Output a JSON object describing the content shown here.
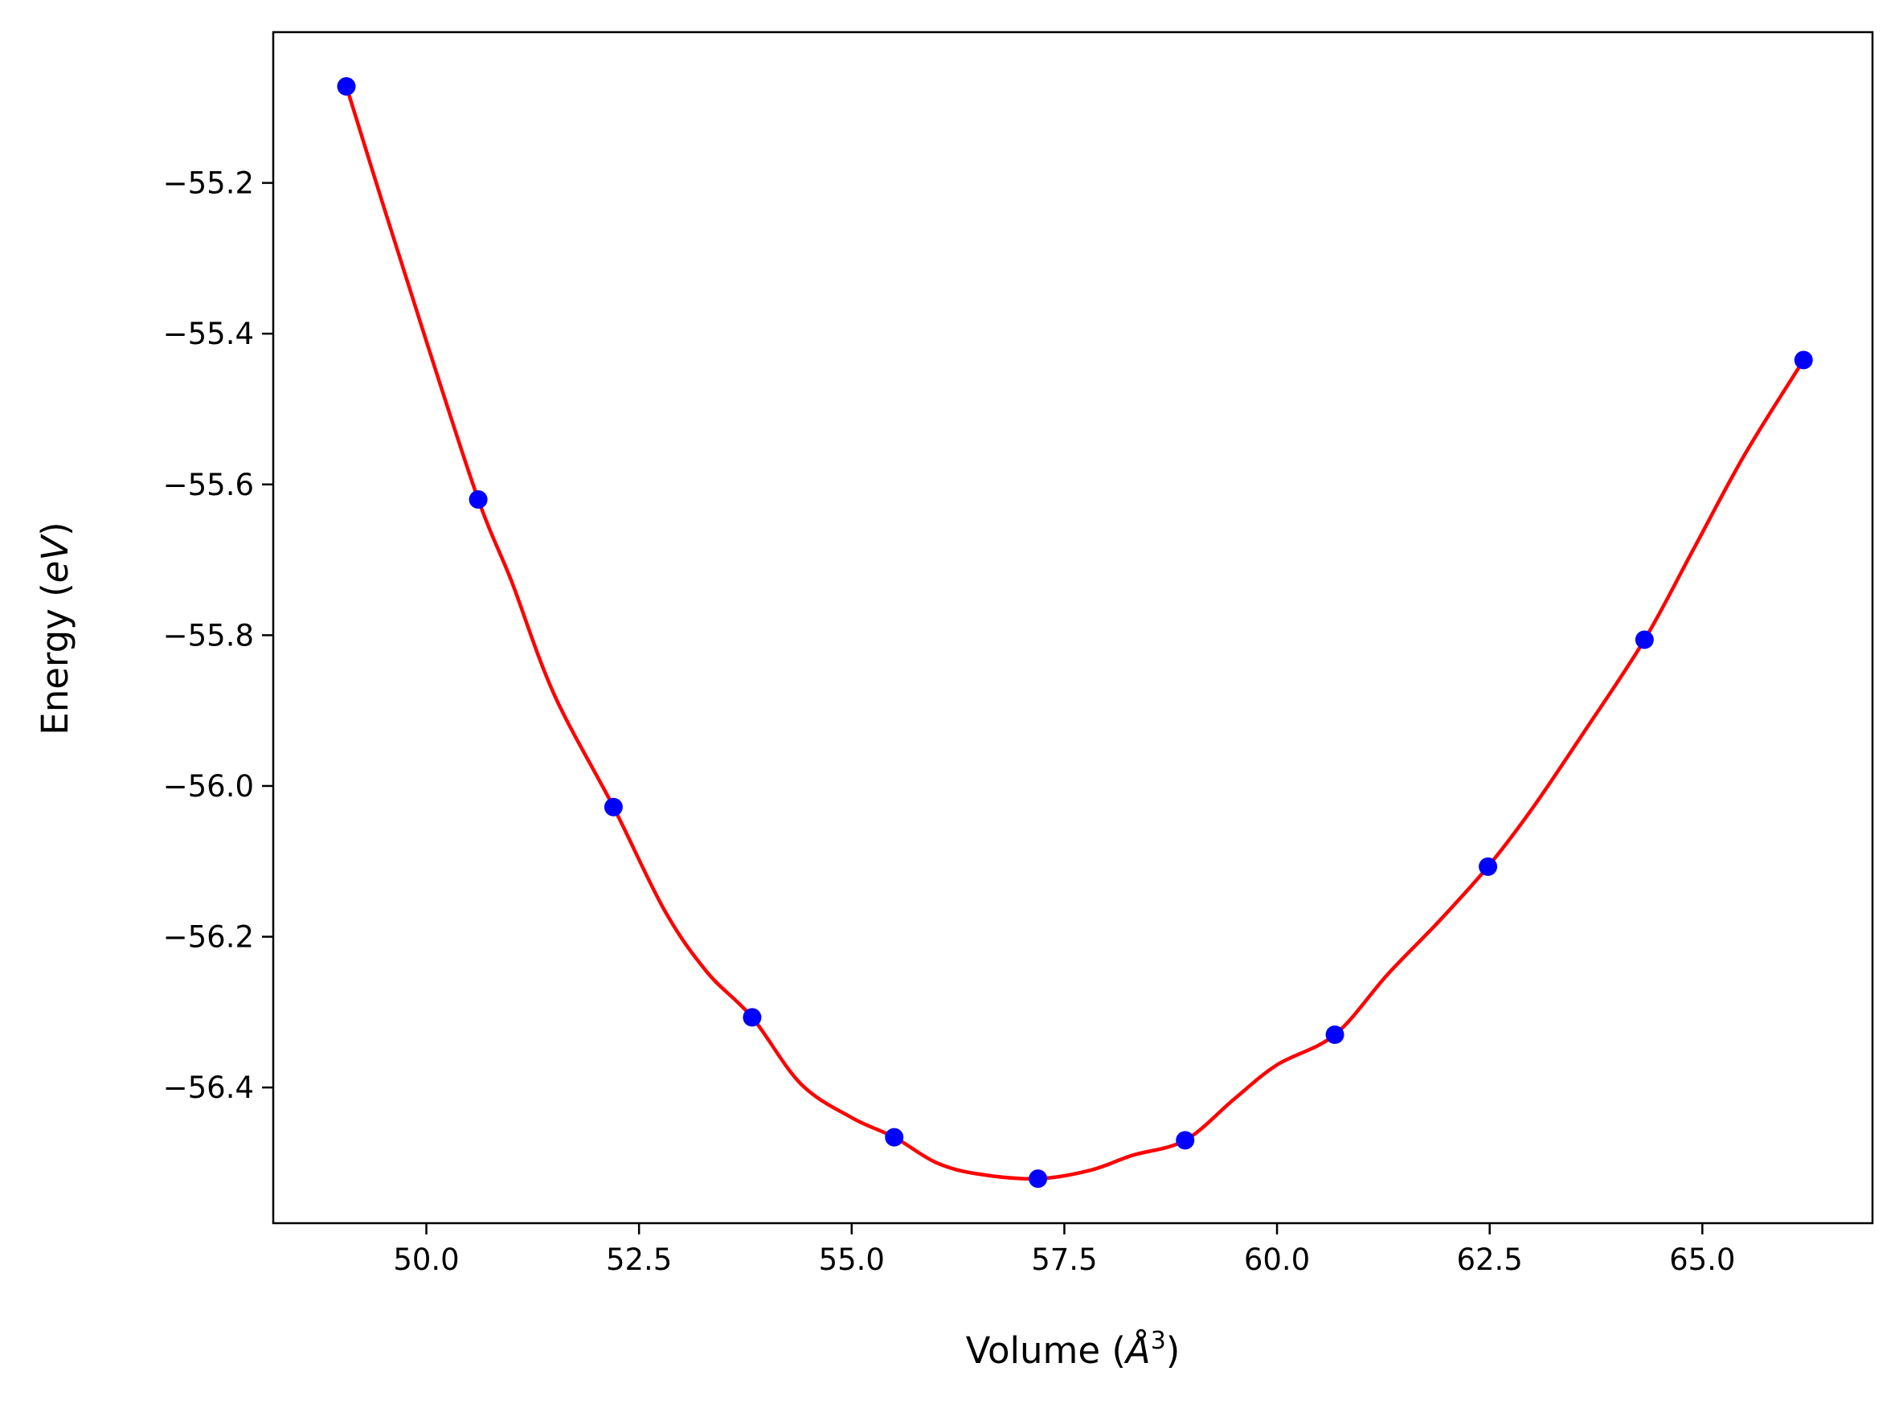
{
  "chart_data": {
    "type": "scatter",
    "xlabel": "Volume (Å³)",
    "xlabel_parts": {
      "prefix": "Volume (",
      "symbol": "Å",
      "exponent": "3",
      "suffix": ")"
    },
    "ylabel": "Energy (eV)",
    "ylabel_parts": {
      "prefix": "Energy (",
      "symbol": "eV",
      "suffix": ")"
    },
    "xlim": [
      48.2,
      67.0
    ],
    "ylim": [
      -56.58,
      -55.0
    ],
    "xticks": [
      50.0,
      52.5,
      55.0,
      57.5,
      60.0,
      62.5,
      65.0
    ],
    "xtick_labels": [
      "50.0",
      "52.5",
      "55.0",
      "57.5",
      "60.0",
      "62.5",
      "65.0"
    ],
    "yticks": [
      -55.2,
      -55.4,
      -55.6,
      -55.8,
      -56.0,
      -56.2,
      -56.4
    ],
    "ytick_labels": [
      "−55.2",
      "−55.4",
      "−55.6",
      "−55.8",
      "−56.0",
      "−56.2",
      "−56.4"
    ],
    "grid": false,
    "series": [
      {
        "kind": "points",
        "color": "#0000ff",
        "x": [
          49.06,
          50.61,
          52.2,
          53.83,
          55.5,
          57.19,
          58.92,
          60.68,
          62.48,
          64.32,
          66.19
        ],
        "y": [
          -55.072,
          -55.62,
          -56.028,
          -56.307,
          -56.466,
          -56.521,
          -56.47,
          -56.33,
          -56.107,
          -55.806,
          -55.435
        ]
      },
      {
        "kind": "fit",
        "color": "#ff0000",
        "x": [
          49.06,
          49.5,
          50.0,
          50.61,
          51.0,
          51.5,
          52.2,
          52.8,
          53.3,
          53.83,
          54.4,
          55.0,
          55.5,
          56.0,
          56.5,
          57.19,
          57.8,
          58.3,
          58.92,
          59.5,
          60.0,
          60.68,
          61.3,
          61.9,
          62.48,
          63.0,
          63.6,
          64.32,
          64.9,
          65.5,
          66.19
        ],
        "y": [
          -55.072,
          -55.232,
          -55.41,
          -55.62,
          -55.728,
          -55.878,
          -56.028,
          -56.165,
          -56.247,
          -56.307,
          -56.395,
          -56.44,
          -56.466,
          -56.5,
          -56.515,
          -56.521,
          -56.51,
          -56.49,
          -56.47,
          -56.415,
          -56.37,
          -56.33,
          -56.25,
          -56.18,
          -56.107,
          -56.03,
          -55.93,
          -55.806,
          -55.685,
          -55.56,
          -55.435
        ]
      }
    ]
  }
}
